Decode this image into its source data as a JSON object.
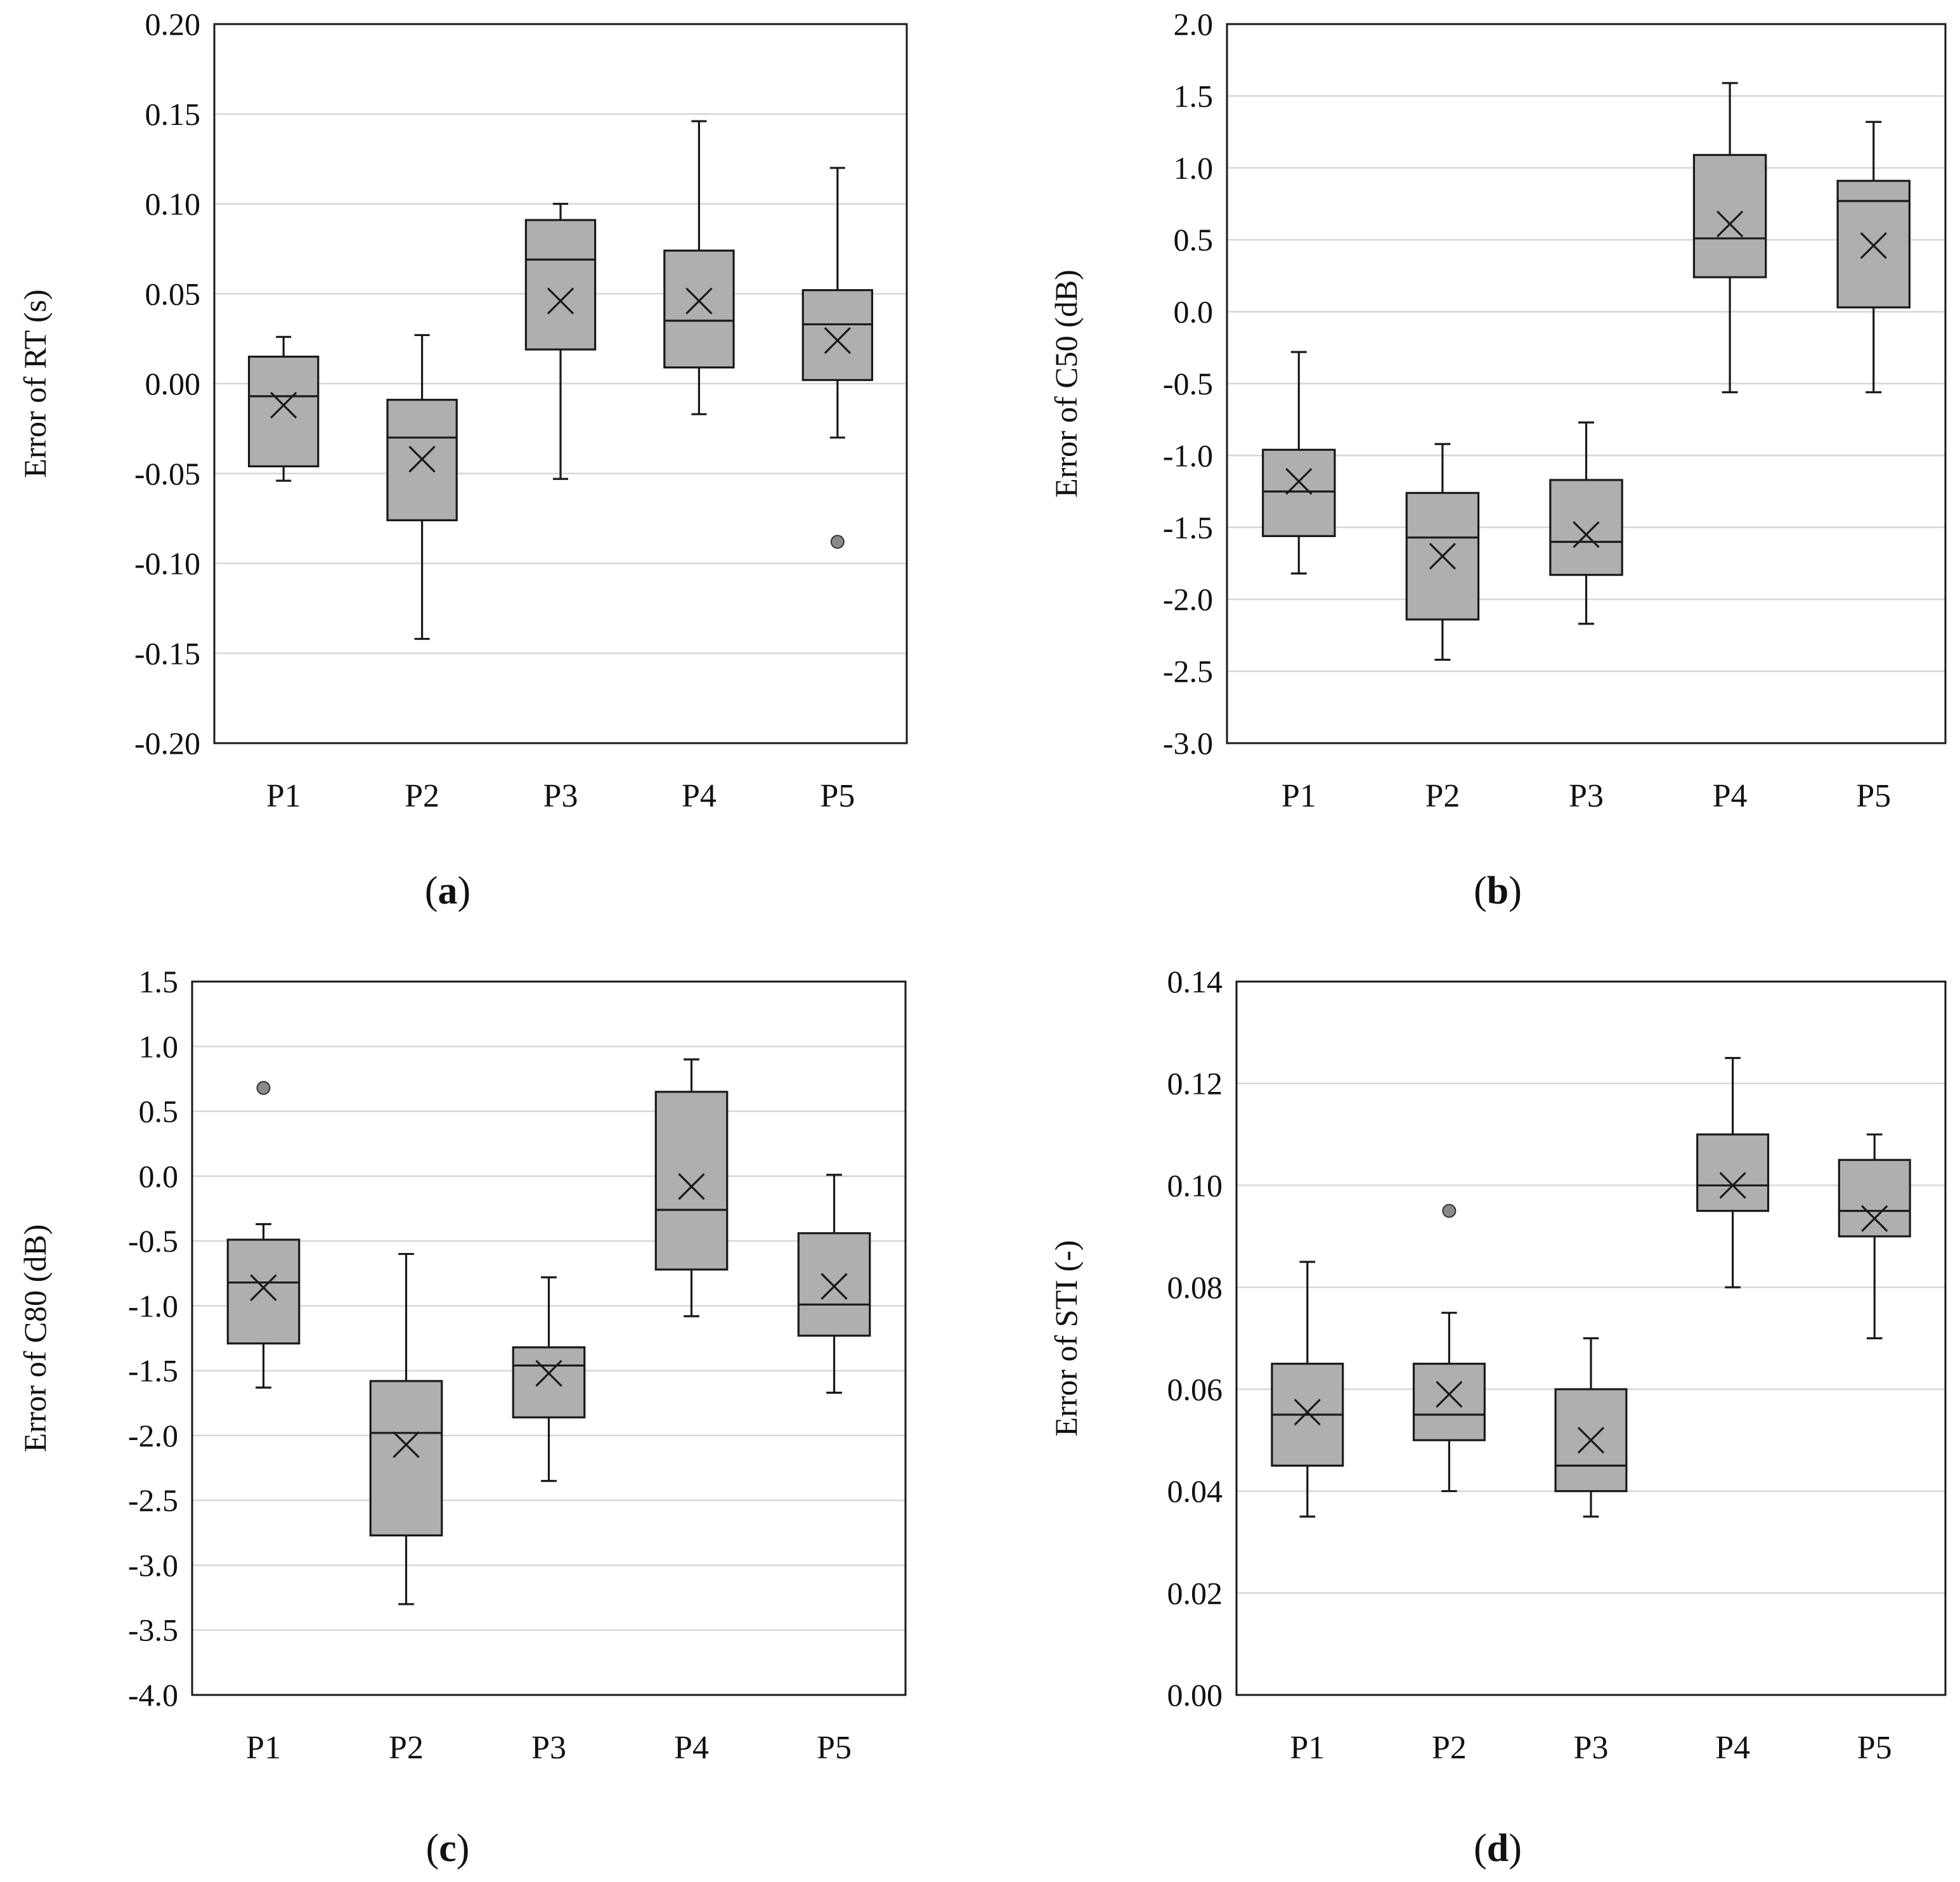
{
  "chart_data": [
    {
      "type": "boxplot",
      "panel": "a",
      "caption_letter": "a",
      "ylabel": "Error of RT  (s)",
      "ylim": [
        -0.2,
        0.2
      ],
      "yticks": [
        0.2,
        0.15,
        0.1,
        0.05,
        0.0,
        -0.05,
        -0.1,
        -0.15,
        -0.2
      ],
      "ytick_labels": [
        "0.20",
        "0.15",
        "0.10",
        "0.05",
        "0.00",
        "-0.05",
        "-0.10",
        "-0.15",
        "-0.20"
      ],
      "categories": [
        "P1",
        "P2",
        "P3",
        "P4",
        "P5"
      ],
      "boxes": [
        {
          "min": -0.054,
          "q1": -0.046,
          "median": -0.007,
          "q3": 0.015,
          "max": 0.026,
          "mean": -0.012,
          "outliers": []
        },
        {
          "min": -0.142,
          "q1": -0.076,
          "median": -0.03,
          "q3": -0.009,
          "max": 0.027,
          "mean": -0.042,
          "outliers": []
        },
        {
          "min": -0.053,
          "q1": 0.019,
          "median": 0.069,
          "q3": 0.091,
          "max": 0.1,
          "mean": 0.046,
          "outliers": []
        },
        {
          "min": -0.017,
          "q1": 0.009,
          "median": 0.035,
          "q3": 0.074,
          "max": 0.146,
          "mean": 0.046,
          "outliers": []
        },
        {
          "min": -0.03,
          "q1": 0.002,
          "median": 0.033,
          "q3": 0.052,
          "max": 0.12,
          "mean": 0.024,
          "outliers": [
            -0.088
          ]
        }
      ]
    },
    {
      "type": "boxplot",
      "panel": "b",
      "caption_letter": "b",
      "ylabel": "Error of C50 (dB)",
      "ylim": [
        -3.0,
        2.0
      ],
      "yticks": [
        2.0,
        1.5,
        1.0,
        0.5,
        0.0,
        -0.5,
        -1.0,
        -1.5,
        -2.0,
        -2.5,
        -3.0
      ],
      "ytick_labels": [
        "2.0",
        "1.5",
        "1.0",
        "0.5",
        "0.0",
        "-0.5",
        "-1.0",
        "-1.5",
        "-2.0",
        "-2.5",
        "-3.0"
      ],
      "categories": [
        "P1",
        "P2",
        "P3",
        "P4",
        "P5"
      ],
      "boxes": [
        {
          "min": -1.82,
          "q1": -1.56,
          "median": -1.25,
          "q3": -0.96,
          "max": -0.28,
          "mean": -1.18,
          "outliers": []
        },
        {
          "min": -2.42,
          "q1": -2.14,
          "median": -1.57,
          "q3": -1.26,
          "max": -0.92,
          "mean": -1.7,
          "outliers": []
        },
        {
          "min": -2.17,
          "q1": -1.83,
          "median": -1.6,
          "q3": -1.17,
          "max": -0.77,
          "mean": -1.55,
          "outliers": []
        },
        {
          "min": -0.56,
          "q1": 0.24,
          "median": 0.51,
          "q3": 1.09,
          "max": 1.59,
          "mean": 0.61,
          "outliers": []
        },
        {
          "min": -0.56,
          "q1": 0.03,
          "median": 0.77,
          "q3": 0.91,
          "max": 1.32,
          "mean": 0.46,
          "outliers": []
        }
      ]
    },
    {
      "type": "boxplot",
      "panel": "c",
      "caption_letter": "c",
      "ylabel": "Error of C80 (dB)",
      "ylim": [
        -4.0,
        1.5
      ],
      "yticks": [
        1.5,
        1.0,
        0.5,
        0.0,
        -0.5,
        -1.0,
        -1.5,
        -2.0,
        -2.5,
        -3.0,
        -3.5,
        -4.0
      ],
      "ytick_labels": [
        "1.5",
        "1.0",
        "0.5",
        "0.0",
        "-0.5",
        "-1.0",
        "-1.5",
        "-2.0",
        "-2.5",
        "-3.0",
        "-3.5",
        "-4.0"
      ],
      "categories": [
        "P1",
        "P2",
        "P3",
        "P4",
        "P5"
      ],
      "boxes": [
        {
          "min": -1.63,
          "q1": -1.29,
          "median": -0.82,
          "q3": -0.49,
          "max": -0.37,
          "mean": -0.86,
          "outliers": [
            0.68
          ]
        },
        {
          "min": -3.3,
          "q1": -2.77,
          "median": -1.98,
          "q3": -1.58,
          "max": -0.6,
          "mean": -2.07,
          "outliers": []
        },
        {
          "min": -2.35,
          "q1": -1.86,
          "median": -1.46,
          "q3": -1.32,
          "max": -0.78,
          "mean": -1.52,
          "outliers": []
        },
        {
          "min": -1.08,
          "q1": -0.72,
          "median": -0.26,
          "q3": 0.65,
          "max": 0.9,
          "mean": -0.08,
          "outliers": []
        },
        {
          "min": -1.67,
          "q1": -1.23,
          "median": -0.99,
          "q3": -0.44,
          "max": 0.01,
          "mean": -0.85,
          "outliers": []
        }
      ]
    },
    {
      "type": "boxplot",
      "panel": "d",
      "caption_letter": "d",
      "ylabel": "Error of STI (-)",
      "ylim": [
        0.0,
        0.14
      ],
      "yticks": [
        0.14,
        0.12,
        0.1,
        0.08,
        0.06,
        0.04,
        0.02,
        0.0
      ],
      "ytick_labels": [
        "0.14",
        "0.12",
        "0.10",
        "0.08",
        "0.06",
        "0.04",
        "0.02",
        "0.00"
      ],
      "categories": [
        "P1",
        "P2",
        "P3",
        "P4",
        "P5"
      ],
      "boxes": [
        {
          "min": 0.035,
          "q1": 0.045,
          "median": 0.055,
          "q3": 0.065,
          "max": 0.085,
          "mean": 0.0555,
          "outliers": []
        },
        {
          "min": 0.04,
          "q1": 0.05,
          "median": 0.055,
          "q3": 0.065,
          "max": 0.075,
          "mean": 0.059,
          "outliers": [
            0.095
          ]
        },
        {
          "min": 0.035,
          "q1": 0.04,
          "median": 0.045,
          "q3": 0.06,
          "max": 0.07,
          "mean": 0.05,
          "outliers": []
        },
        {
          "min": 0.08,
          "q1": 0.095,
          "median": 0.1,
          "q3": 0.11,
          "max": 0.125,
          "mean": 0.1,
          "outliers": []
        },
        {
          "min": 0.07,
          "q1": 0.09,
          "median": 0.095,
          "q3": 0.105,
          "max": 0.11,
          "mean": 0.0935,
          "outliers": []
        }
      ]
    }
  ],
  "colors": {
    "box_fill": "#b1aeae",
    "stroke": "#1a1a1a",
    "grid": "#d6d6d6",
    "outlier_fill": "#8a8a8a",
    "background": "#ffffff"
  }
}
